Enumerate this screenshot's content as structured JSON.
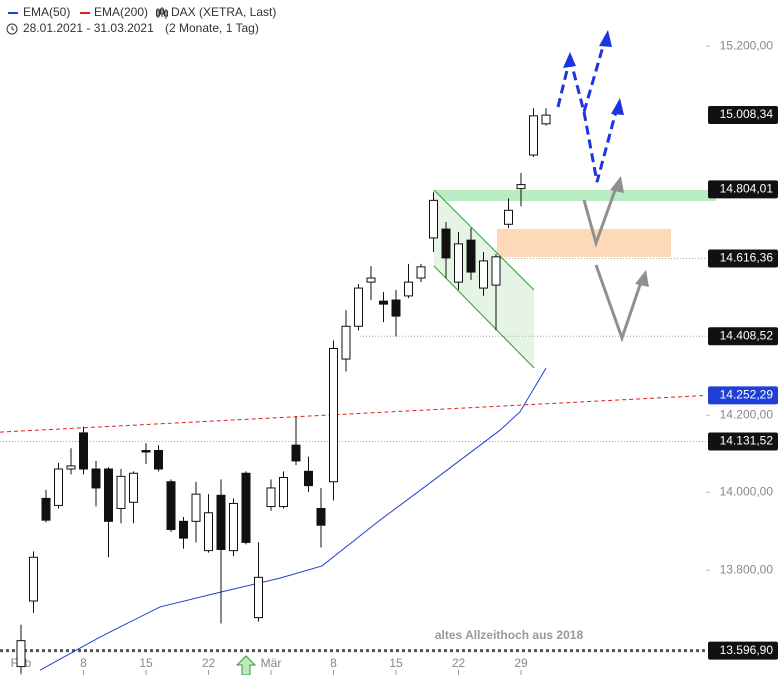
{
  "chart_data": {
    "type": "candlestick",
    "candles": {
      "name": "DAX (XETRA, Last)",
      "open": [
        13557,
        13722,
        13984,
        13966,
        14060,
        14154,
        14060,
        14060,
        13958,
        13974,
        14108,
        14108,
        14027,
        13925,
        13925,
        13850,
        13992,
        13850,
        14049,
        13680,
        13963,
        13963,
        14122,
        14054,
        13958,
        14027,
        14348,
        14435,
        14553,
        14502,
        14505,
        14516,
        14564,
        14672,
        14696,
        14553,
        14666,
        14537,
        14545,
        14709,
        14806,
        14898,
        14984
      ],
      "high": [
        13662,
        13848,
        14006,
        14076,
        14114,
        14170,
        14081,
        14065,
        14060,
        14054,
        14127,
        14122,
        14033,
        13936,
        14027,
        13995,
        14033,
        13984,
        14054,
        13871,
        14033,
        14054,
        14197,
        14092,
        14011,
        14397,
        14478,
        14548,
        14596,
        14526,
        14532,
        14602,
        14602,
        14796,
        14715,
        14688,
        14699,
        14634,
        14629,
        14779,
        14849,
        15027,
        15027
      ],
      "low": [
        13540,
        13692,
        13922,
        13958,
        14046,
        14046,
        13963,
        13833,
        13920,
        13920,
        14073,
        14054,
        13898,
        13855,
        13871,
        13845,
        13665,
        13836,
        13866,
        13670,
        13952,
        13958,
        14070,
        14001,
        13858,
        13979,
        14315,
        14424,
        14505,
        14446,
        14408,
        14510,
        14553,
        14634,
        14564,
        14532,
        14559,
        14516,
        14424,
        14699,
        14758,
        14893,
        14979
      ],
      "close": [
        13622,
        13833,
        13928,
        14060,
        14068,
        14060,
        14011,
        13925,
        14041,
        14049,
        14105,
        14060,
        13904,
        13882,
        13995,
        13947,
        13853,
        13971,
        13871,
        13782,
        14011,
        14038,
        14081,
        14017,
        13915,
        14376,
        14435,
        14537,
        14564,
        14494,
        14462,
        14553,
        14594,
        14774,
        14618,
        14656,
        14580,
        14610,
        14621,
        14747,
        14817,
        15006,
        15008
      ]
    },
    "lines": [
      {
        "name": "EMA(50)",
        "color": "#1f3fd6",
        "dashed": false,
        "x": [
          1.52,
          6.32,
          11.12,
          15.92,
          20.72,
          24.08,
          28.72,
          32.72,
          38.32,
          39.92,
          42
        ],
        "values": [
          13548,
          13631,
          13707,
          13744,
          13780,
          13811,
          13928,
          14024,
          14161,
          14209,
          14324
        ]
      },
      {
        "name": "EMA(200)",
        "color": "#e02020",
        "dashed": true,
        "x": [
          -1.68,
          54.8
        ],
        "values": [
          14156,
          14252
        ]
      }
    ],
    "period": "28.01.2021 - 31.03.2021",
    "period_note": "(2 Monate, 1 Tag)",
    "log_scale": true,
    "ylim": [
      13536,
      15330
    ],
    "yticks": [
      {
        "value": 15200,
        "label": "15.200,00"
      },
      {
        "value": 14200,
        "label": "14.200,00"
      },
      {
        "value": 14000,
        "label": "14.000,00"
      },
      {
        "value": 13800,
        "label": "13.800,00"
      }
    ],
    "levels": [
      {
        "value": 15008.34,
        "label": "15.008,34",
        "color": "#111111"
      },
      {
        "value": 14804.01,
        "label": "14.804,01",
        "color": "#111111"
      },
      {
        "value": 14616.36,
        "label": "14.616,36",
        "color": "#111111"
      },
      {
        "value": 14408.52,
        "label": "14.408,52",
        "color": "#111111"
      },
      {
        "value": 14252.29,
        "label": "14.252,29",
        "color": "#1f3fd6"
      },
      {
        "value": 14131.52,
        "label": "14.131,52",
        "color": "#111111"
      },
      {
        "value": 13596.9,
        "label": "13.596,90",
        "color": "#111111"
      }
    ],
    "xticks": [
      {
        "value": 0,
        "label": "Feb"
      },
      {
        "value": 5,
        "label": "8"
      },
      {
        "value": 10,
        "label": "15"
      },
      {
        "value": 15,
        "label": "22"
      },
      {
        "value": 20,
        "label": "Mär"
      },
      {
        "value": 25,
        "label": "8"
      },
      {
        "value": 30,
        "label": "15"
      },
      {
        "value": 35,
        "label": "22"
      },
      {
        "value": 40,
        "label": "29"
      }
    ],
    "annotation": "altes Allzeithoch aus 2018"
  }
}
